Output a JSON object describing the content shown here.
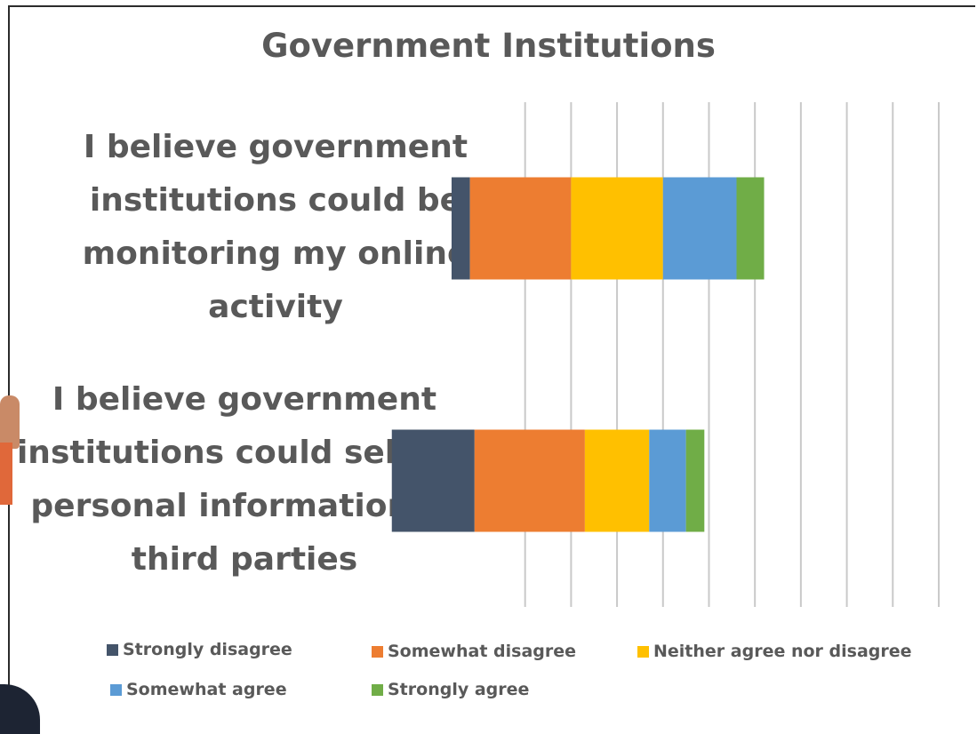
{
  "chart_data": {
    "type": "bar",
    "orientation": "horizontal",
    "stacked": true,
    "title": "Government Institutions",
    "categories": [
      "I believe government institutions could be monitoring my online activity",
      "I believe government institutions could sell my personal information to third parties"
    ],
    "series": [
      {
        "name": "Strongly disagree",
        "color": "#44546a",
        "values": [
          4,
          18
        ]
      },
      {
        "name": "Somewhat disagree",
        "color": "#ed7d31",
        "values": [
          22,
          24
        ]
      },
      {
        "name": "Neither agree nor disagree",
        "color": "#ffc000",
        "values": [
          20,
          14
        ]
      },
      {
        "name": "Somewhat agree",
        "color": "#5b9bd5",
        "values": [
          16,
          8
        ]
      },
      {
        "name": "Strongly agree",
        "color": "#70ad47",
        "values": [
          6,
          4
        ]
      }
    ],
    "xlim": [
      -24,
      76
    ],
    "gridlines": true,
    "legend_position": "bottom",
    "xlabel": "",
    "ylabel": ""
  }
}
